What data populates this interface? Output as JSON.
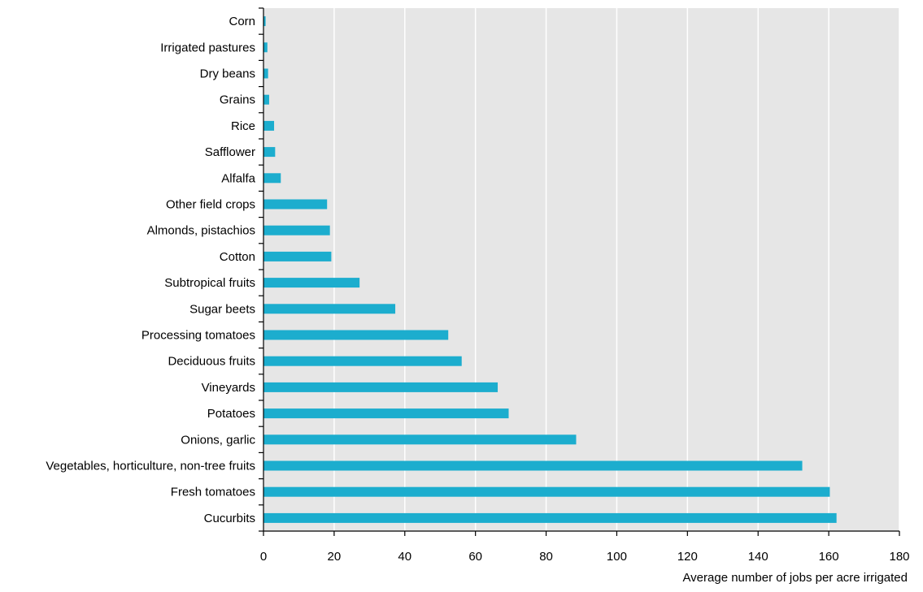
{
  "chart_data": {
    "type": "bar",
    "orientation": "horizontal",
    "title": "",
    "xlabel": "Average number of jobs per acre irrigated",
    "ylabel": "",
    "xlim": [
      0,
      180
    ],
    "x_ticks": [
      0,
      20,
      40,
      60,
      80,
      100,
      120,
      140,
      160,
      180
    ],
    "grid": true,
    "legend": "none",
    "categories": [
      "Corn",
      "Irrigated pastures",
      "Dry beans",
      "Grains",
      "Rice",
      "Safflower",
      "Alfalfa",
      "Other field crops",
      "Almonds, pistachios",
      "Cotton",
      "Subtropical fruits",
      "Sugar beets",
      "Processing tomatoes",
      "Deciduous fruits",
      "Vineyards",
      "Potatoes",
      "Onions, garlic",
      "Vegetables, horticulture, non-tree fruits",
      "Fresh tomatoes",
      "Cucurbits"
    ],
    "values": [
      0.6,
      1.1,
      1.3,
      1.6,
      3.0,
      3.3,
      4.9,
      18.0,
      18.8,
      19.2,
      27.2,
      37.3,
      52.3,
      56.1,
      66.3,
      69.4,
      88.5,
      152.5,
      160.3,
      162.2
    ],
    "colors": {
      "bar": "#1CADCE",
      "plot_background": "#E6E6E6",
      "grid": "#FFFFFF",
      "axis": "#000000"
    }
  }
}
